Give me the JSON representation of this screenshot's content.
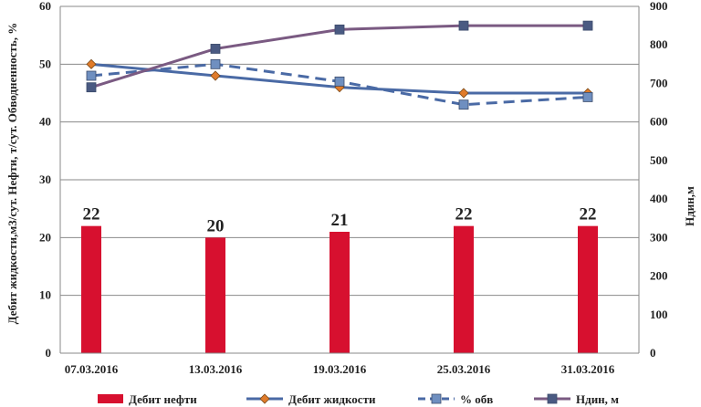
{
  "chart_data": {
    "type": "bar",
    "categories": [
      "07.03.2016",
      "13.03.2016",
      "19.03.2016",
      "25.03.2016",
      "31.03.2016"
    ],
    "ylabel": "Дебит жидкости,м3/сут. Нефти, т/сут. Обводненность, %",
    "y2label": "Ндин,м",
    "ylim": [
      0,
      60
    ],
    "y2lim": [
      0,
      900
    ],
    "yticks": [
      0,
      10,
      20,
      30,
      40,
      50,
      60
    ],
    "y2ticks": [
      0,
      100,
      200,
      300,
      400,
      500,
      600,
      700,
      800,
      900
    ],
    "grid": true,
    "legend_position": "bottom",
    "series": [
      {
        "name": "Дебит нефти",
        "type": "bar",
        "axis": "left",
        "values": [
          22,
          20,
          21,
          22,
          22
        ],
        "labels": [
          "22",
          "20",
          "21",
          "22",
          "22"
        ],
        "color": "#d7102f"
      },
      {
        "name": "Дебит жидкости",
        "type": "line",
        "axis": "left",
        "values": [
          50,
          48,
          46,
          45,
          45
        ],
        "color": "#4a6aa5",
        "marker": "diamond",
        "marker_color": "#e07b2a"
      },
      {
        "name": "% обв",
        "type": "line",
        "axis": "left",
        "values": [
          48,
          50,
          47,
          43,
          44.3
        ],
        "color": "#4a6aa5",
        "dashed": true,
        "marker": "square",
        "marker_color": "#6f8fc0"
      },
      {
        "name": "Ндин, м",
        "type": "line",
        "axis": "right",
        "values": [
          690,
          790,
          840,
          850,
          850
        ],
        "color": "#7a5a82",
        "marker": "square",
        "marker_color": "#4a5a82"
      }
    ]
  }
}
